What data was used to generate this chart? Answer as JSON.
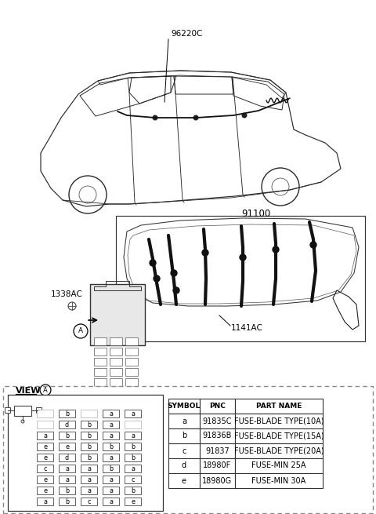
{
  "bg_color": "#ffffff",
  "part_label_96220C": "96220C",
  "part_label_91100": "91100",
  "part_label_1338AC": "1338AC",
  "part_label_1141AC": "1141AC",
  "view_label": "VIEW",
  "view_circle": "A",
  "table_headers": [
    "SYMBOL",
    "PNC",
    "PART NAME"
  ],
  "table_rows": [
    [
      "a",
      "91835C",
      "FUSE-BLADE TYPE(10A)"
    ],
    [
      "b",
      "91836B",
      "FUSE-BLADE TYPE(15A)"
    ],
    [
      "c",
      "91837",
      "FUSE-BLADE TYPE(20A)"
    ],
    [
      "d",
      "18980F",
      "FUSE-MIN 25A"
    ],
    [
      "e",
      "18980G",
      "FUSE-MIN 30A"
    ]
  ],
  "fuse_grid": [
    [
      "",
      "b",
      "",
      "a",
      "a"
    ],
    [
      "",
      "d",
      "b",
      "a",
      ""
    ],
    [
      "a",
      "b",
      "b",
      "a",
      "a"
    ],
    [
      "e",
      "e",
      "b",
      "b",
      "b"
    ],
    [
      "e",
      "d",
      "b",
      "a",
      "b"
    ],
    [
      "c",
      "a",
      "a",
      "b",
      "a"
    ],
    [
      "e",
      "a",
      "a",
      "a",
      "c"
    ],
    [
      "e",
      "b",
      "a",
      "a",
      "b"
    ],
    [
      "a",
      "b",
      "c",
      "a",
      "e"
    ]
  ]
}
